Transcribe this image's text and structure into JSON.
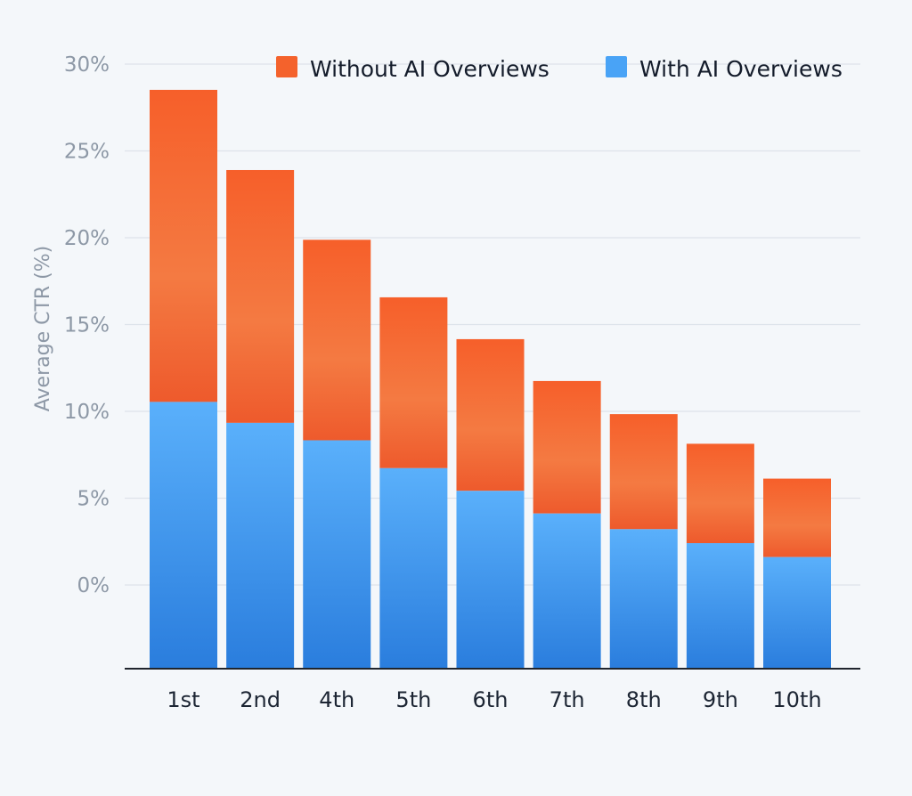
{
  "chart_data": {
    "type": "bar",
    "stacked": true,
    "ylabel": "Average CTR (%)",
    "xlabel": "",
    "y_ticks": [
      "0%",
      "5%",
      "10%",
      "15%",
      "20%",
      "25%",
      "30%"
    ],
    "categories": [
      "1st",
      "2nd",
      "4th",
      "5th",
      "6th",
      "7th",
      "8th",
      "9th",
      "10th"
    ],
    "series": [
      {
        "name": "With AI Overviews",
        "color": "#3f95f0",
        "values": [
          15.3,
          14.1,
          13.1,
          11.5,
          10.2,
          8.9,
          8.0,
          7.2,
          6.4
        ]
      },
      {
        "name": "Without AI Overviews",
        "color": "#f4622c",
        "values": [
          17.9,
          14.5,
          11.5,
          9.8,
          8.7,
          7.6,
          6.6,
          5.7,
          4.5
        ]
      }
    ],
    "legend_position": "top-right",
    "grid": true
  },
  "legend": {
    "without_label": "Without AI Overviews",
    "with_label": "With AI Overviews"
  }
}
